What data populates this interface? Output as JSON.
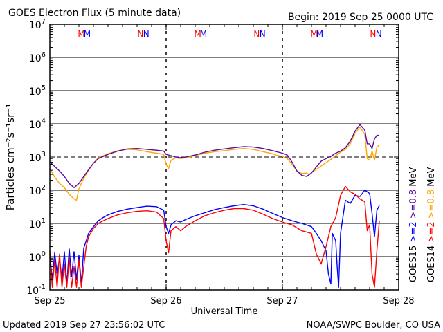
{
  "chart_data": {
    "type": "line",
    "title": "GOES Electron Flux (5 minute data)",
    "begin_label": "Begin: 2019 Sep 25 0000 UTC",
    "xlabel": "Universal Time",
    "ylabel": "Particles cm⁻²s⁻¹sr⁻¹",
    "y_scale": "log",
    "ylim": [
      0.1,
      10000000
    ],
    "xlim": [
      0,
      72
    ],
    "x_unit": "hours since 2019 Sep 25 0000 UTC",
    "x_ticks": [
      {
        "x": 0,
        "label": "Sep 25"
      },
      {
        "x": 24,
        "label": "Sep 26"
      },
      {
        "x": 48,
        "label": "Sep 27"
      },
      {
        "x": 72,
        "label": "Sep 28"
      }
    ],
    "y_ticks": [
      {
        "value": 0.1,
        "base": "10",
        "exp": "-1"
      },
      {
        "value": 1,
        "base": "10",
        "exp": "0"
      },
      {
        "value": 10,
        "base": "10",
        "exp": "1"
      },
      {
        "value": 100,
        "base": "10",
        "exp": "2"
      },
      {
        "value": 1000,
        "base": "10",
        "exp": "3"
      },
      {
        "value": 10000,
        "base": "10",
        "exp": "4"
      },
      {
        "value": 100000,
        "base": "10",
        "exp": "5"
      },
      {
        "value": 1000000,
        "base": "10",
        "exp": "6"
      },
      {
        "value": 10000000,
        "base": "10",
        "exp": "7"
      }
    ],
    "grid": true,
    "threshold": 1000,
    "markers": [
      {
        "x": 6.5,
        "label": "M",
        "color": "#ff0000"
      },
      {
        "x": 7.7,
        "label": "M",
        "color": "#0000ff"
      },
      {
        "x": 18.7,
        "label": "N",
        "color": "#ff0000"
      },
      {
        "x": 19.9,
        "label": "N",
        "color": "#0000ff"
      },
      {
        "x": 30.5,
        "label": "M",
        "color": "#ff0000"
      },
      {
        "x": 31.7,
        "label": "M",
        "color": "#0000ff"
      },
      {
        "x": 42.7,
        "label": "N",
        "color": "#ff0000"
      },
      {
        "x": 43.9,
        "label": "N",
        "color": "#0000ff"
      },
      {
        "x": 54.5,
        "label": "M",
        "color": "#ff0000"
      },
      {
        "x": 55.7,
        "label": "M",
        "color": "#0000ff"
      },
      {
        "x": 66.7,
        "label": "N",
        "color": "#ff0000"
      },
      {
        "x": 67.9,
        "label": "N",
        "color": "#0000ff"
      }
    ],
    "series": [
      {
        "name": ">=0.8 MeV",
        "satellite": "GOES15",
        "color": "#5a0aa0",
        "points": [
          [
            0,
            700
          ],
          [
            1,
            520
          ],
          [
            2,
            380
          ],
          [
            3,
            260
          ],
          [
            4,
            160
          ],
          [
            5,
            120
          ],
          [
            6,
            160
          ],
          [
            7,
            260
          ],
          [
            8,
            420
          ],
          [
            9,
            650
          ],
          [
            10,
            900
          ],
          [
            12,
            1200
          ],
          [
            14,
            1500
          ],
          [
            16,
            1750
          ],
          [
            18,
            1800
          ],
          [
            20,
            1700
          ],
          [
            22,
            1600
          ],
          [
            23.5,
            1500
          ],
          [
            24,
            1200
          ],
          [
            25,
            1100
          ],
          [
            26,
            1000
          ],
          [
            27,
            950
          ],
          [
            28,
            1000
          ],
          [
            30,
            1150
          ],
          [
            32,
            1400
          ],
          [
            34,
            1600
          ],
          [
            36,
            1750
          ],
          [
            38,
            1900
          ],
          [
            40,
            2050
          ],
          [
            42,
            2000
          ],
          [
            44,
            1800
          ],
          [
            46,
            1550
          ],
          [
            48,
            1300
          ],
          [
            49,
            1150
          ],
          [
            50,
            700
          ],
          [
            51,
            380
          ],
          [
            52,
            280
          ],
          [
            53,
            260
          ],
          [
            54,
            330
          ],
          [
            55,
            500
          ],
          [
            56,
            750
          ],
          [
            57,
            900
          ],
          [
            58,
            1050
          ],
          [
            59,
            1300
          ],
          [
            60,
            1500
          ],
          [
            61,
            1900
          ],
          [
            62,
            3000
          ],
          [
            63,
            6000
          ],
          [
            64,
            9500
          ],
          [
            65,
            6500
          ],
          [
            65.5,
            2500
          ],
          [
            66,
            2500
          ],
          [
            66.5,
            1800
          ],
          [
            67,
            3500
          ],
          [
            67.5,
            4500
          ],
          [
            68,
            4500
          ]
        ]
      },
      {
        "name": ">=0.8 MeV",
        "satellite": "GOES14",
        "color": "#ffa500",
        "points": [
          [
            0,
            450
          ],
          [
            1,
            250
          ],
          [
            2,
            160
          ],
          [
            3,
            120
          ],
          [
            4,
            75
          ],
          [
            5,
            55
          ],
          [
            5.5,
            50
          ],
          [
            6,
            110
          ],
          [
            7,
            230
          ],
          [
            8,
            400
          ],
          [
            9,
            650
          ],
          [
            10,
            950
          ],
          [
            12,
            1250
          ],
          [
            14,
            1550
          ],
          [
            16,
            1700
          ],
          [
            18,
            1650
          ],
          [
            20,
            1450
          ],
          [
            22,
            1300
          ],
          [
            23.5,
            1200
          ],
          [
            24,
            600
          ],
          [
            24.5,
            450
          ],
          [
            25,
            800
          ],
          [
            26,
            950
          ],
          [
            27,
            900
          ],
          [
            28,
            950
          ],
          [
            30,
            1100
          ],
          [
            32,
            1300
          ],
          [
            34,
            1450
          ],
          [
            36,
            1550
          ],
          [
            38,
            1700
          ],
          [
            40,
            1800
          ],
          [
            42,
            1700
          ],
          [
            44,
            1450
          ],
          [
            46,
            1250
          ],
          [
            47,
            1100
          ],
          [
            48,
            1050
          ],
          [
            49,
            900
          ],
          [
            50,
            600
          ],
          [
            51,
            380
          ],
          [
            52,
            320
          ],
          [
            53,
            330
          ],
          [
            53.5,
            300
          ],
          [
            58,
            850
          ],
          [
            59,
            1100
          ],
          [
            60,
            1400
          ],
          [
            61,
            1700
          ],
          [
            62,
            2500
          ],
          [
            63,
            5200
          ],
          [
            64,
            8000
          ],
          [
            65,
            4800
          ],
          [
            65.5,
            900
          ],
          [
            66,
            800
          ],
          [
            66.5,
            1500
          ],
          [
            67,
            800
          ],
          [
            67.5,
            2000
          ],
          [
            68,
            2300
          ]
        ]
      },
      {
        "name": ">=2 MeV",
        "satellite": "GOES15",
        "color": "#0000ff",
        "points": [
          [
            0,
            1.2
          ],
          [
            0.5,
            0.2
          ],
          [
            1,
            1.3
          ],
          [
            1.5,
            0.3
          ],
          [
            2,
            0.9
          ],
          [
            2.5,
            0.2
          ],
          [
            3,
            1.4
          ],
          [
            3.5,
            0.15
          ],
          [
            4,
            1.7
          ],
          [
            4.5,
            0.25
          ],
          [
            5,
            1.4
          ],
          [
            5.5,
            0.2
          ],
          [
            6,
            1.1
          ],
          [
            6.5,
            0.15
          ],
          [
            7,
            1.8
          ],
          [
            7.5,
            3
          ],
          [
            8,
            5
          ],
          [
            9,
            8
          ],
          [
            10,
            12
          ],
          [
            11,
            15
          ],
          [
            12,
            18
          ],
          [
            14,
            23
          ],
          [
            16,
            27
          ],
          [
            18,
            30
          ],
          [
            20,
            33
          ],
          [
            22,
            32
          ],
          [
            23.5,
            25
          ],
          [
            24,
            8
          ],
          [
            24.5,
            5
          ],
          [
            25,
            9
          ],
          [
            26,
            12
          ],
          [
            27,
            11
          ],
          [
            28,
            13
          ],
          [
            30,
            17
          ],
          [
            32,
            21
          ],
          [
            34,
            26
          ],
          [
            36,
            30
          ],
          [
            38,
            34
          ],
          [
            40,
            37
          ],
          [
            42,
            34
          ],
          [
            44,
            27
          ],
          [
            46,
            20
          ],
          [
            48,
            15
          ],
          [
            50,
            12
          ],
          [
            52,
            10
          ],
          [
            54,
            8
          ],
          [
            55,
            5
          ],
          [
            56,
            3
          ],
          [
            57,
            1.5
          ],
          [
            57.5,
            0.3
          ],
          [
            58,
            0.15
          ],
          [
            58.3,
            5
          ],
          [
            59,
            3
          ],
          [
            59.3,
            0.5
          ],
          [
            59.6,
            0.12
          ],
          [
            60,
            5
          ],
          [
            61,
            50
          ],
          [
            62,
            40
          ],
          [
            63,
            70
          ],
          [
            64,
            65
          ],
          [
            65,
            100
          ],
          [
            66,
            80
          ],
          [
            66.5,
            20
          ],
          [
            67,
            4
          ],
          [
            67.5,
            25
          ],
          [
            68,
            35
          ]
        ]
      },
      {
        "name": ">=2 MeV",
        "satellite": "GOES14",
        "color": "#ff0000",
        "points": [
          [
            0,
            1.5
          ],
          [
            0.5,
            0.12
          ],
          [
            1,
            0.8
          ],
          [
            1.5,
            0.12
          ],
          [
            2,
            1.2
          ],
          [
            2.5,
            0.12
          ],
          [
            3,
            0.6
          ],
          [
            3.5,
            0.12
          ],
          [
            4,
            0.9
          ],
          [
            4.5,
            0.12
          ],
          [
            5,
            0.5
          ],
          [
            5.5,
            0.12
          ],
          [
            6,
            0.8
          ],
          [
            6.5,
            0.12
          ],
          [
            7,
            0.5
          ],
          [
            7.5,
            2
          ],
          [
            8,
            4
          ],
          [
            9,
            7
          ],
          [
            10,
            10
          ],
          [
            11,
            12
          ],
          [
            12,
            14
          ],
          [
            14,
            18
          ],
          [
            16,
            21
          ],
          [
            18,
            23
          ],
          [
            20,
            24
          ],
          [
            22,
            22
          ],
          [
            23.5,
            14
          ],
          [
            24,
            3
          ],
          [
            24.5,
            1.3
          ],
          [
            25,
            6
          ],
          [
            26,
            8
          ],
          [
            27,
            6
          ],
          [
            28,
            8
          ],
          [
            30,
            12
          ],
          [
            32,
            17
          ],
          [
            34,
            21
          ],
          [
            36,
            25
          ],
          [
            38,
            28
          ],
          [
            40,
            28
          ],
          [
            42,
            25
          ],
          [
            44,
            19
          ],
          [
            46,
            14
          ],
          [
            48,
            11
          ],
          [
            50,
            9
          ],
          [
            52,
            6
          ],
          [
            54,
            5
          ],
          [
            55,
            1.2
          ],
          [
            56,
            0.6
          ],
          [
            57,
            2
          ],
          [
            58,
            8
          ],
          [
            59,
            15
          ],
          [
            60,
            70
          ],
          [
            61,
            130
          ],
          [
            62,
            90
          ],
          [
            63,
            75
          ],
          [
            64,
            55
          ],
          [
            65,
            45
          ],
          [
            65.5,
            6
          ],
          [
            66,
            9
          ],
          [
            66.5,
            0.3
          ],
          [
            67,
            0.12
          ],
          [
            67.5,
            1.5
          ],
          [
            68,
            12
          ]
        ]
      }
    ]
  },
  "side_labels": [
    {
      "text": "GOES15",
      "color": "#000000"
    },
    {
      "text": ">=2",
      "color": "#0000ff"
    },
    {
      "text": ">=0.8",
      "color": "#5a0aa0"
    },
    {
      "text": "MeV",
      "color": "#000000"
    },
    {
      "text": "GOES14",
      "color": "#000000"
    },
    {
      "text": ">=2",
      "color": "#ff0000"
    },
    {
      "text": ">=0.8",
      "color": "#ffa500"
    },
    {
      "text": "MeV",
      "color": "#000000"
    }
  ],
  "footer": {
    "updated": "Updated 2019 Sep 27 23:56:02 UTC",
    "credit": "NOAA/SWPC Boulder, CO USA"
  }
}
